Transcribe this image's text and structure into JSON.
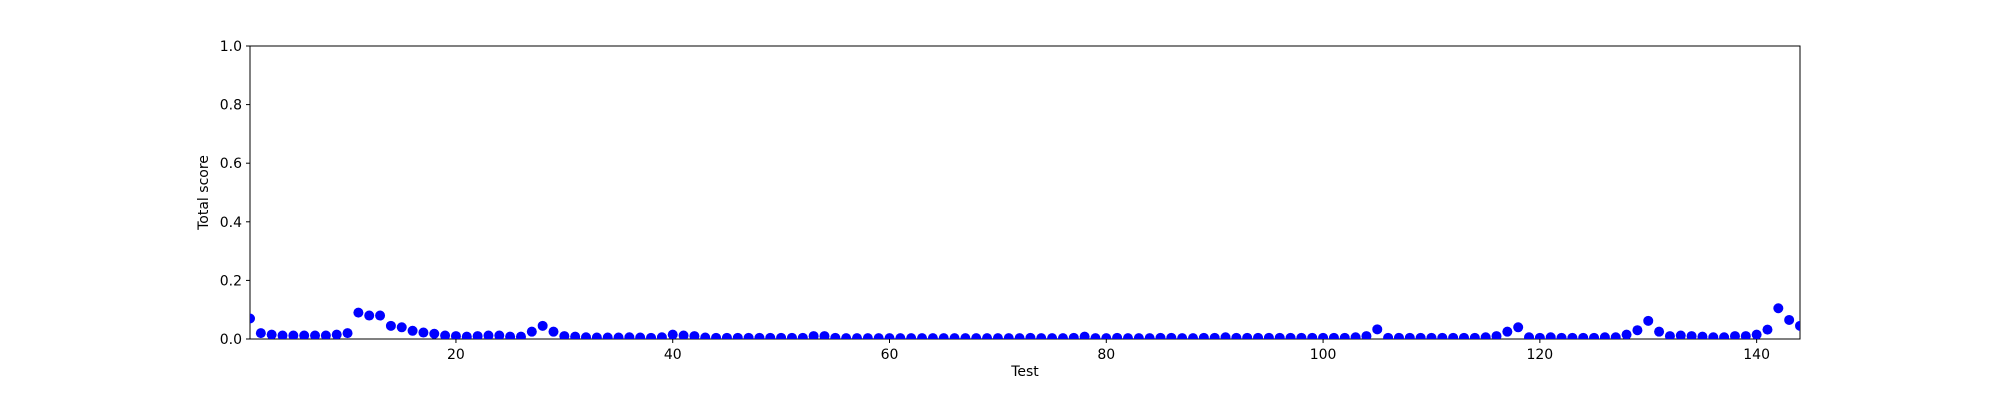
{
  "chart_data": {
    "type": "scatter",
    "xlabel": "Test",
    "ylabel": "Total score",
    "color": "#0000ff",
    "x": [
      1,
      2,
      3,
      4,
      5,
      6,
      7,
      8,
      9,
      10,
      11,
      12,
      13,
      14,
      15,
      16,
      17,
      18,
      19,
      20,
      21,
      22,
      23,
      24,
      25,
      26,
      27,
      28,
      29,
      30,
      31,
      32,
      33,
      34,
      35,
      36,
      37,
      38,
      39,
      40,
      41,
      42,
      43,
      44,
      45,
      46,
      47,
      48,
      49,
      50,
      51,
      52,
      53,
      54,
      55,
      56,
      57,
      58,
      59,
      60,
      61,
      62,
      63,
      64,
      65,
      66,
      67,
      68,
      69,
      70,
      71,
      72,
      73,
      74,
      75,
      76,
      77,
      78,
      79,
      80,
      81,
      82,
      83,
      84,
      85,
      86,
      87,
      88,
      89,
      90,
      91,
      92,
      93,
      94,
      95,
      96,
      97,
      98,
      99,
      100,
      101,
      102,
      103,
      104,
      105,
      106,
      107,
      108,
      109,
      110,
      111,
      112,
      113,
      114,
      115,
      116,
      117,
      118,
      119,
      120,
      121,
      122,
      123,
      124,
      125,
      126,
      127,
      128,
      129,
      130,
      131,
      132,
      133,
      134,
      135,
      136,
      137,
      138,
      139,
      140,
      141,
      142,
      143,
      144
    ],
    "values": [
      0.07,
      0.02,
      0.015,
      0.012,
      0.012,
      0.012,
      0.012,
      0.012,
      0.015,
      0.02,
      0.09,
      0.08,
      0.08,
      0.045,
      0.04,
      0.028,
      0.022,
      0.018,
      0.012,
      0.01,
      0.008,
      0.01,
      0.012,
      0.012,
      0.008,
      0.008,
      0.025,
      0.045,
      0.025,
      0.01,
      0.008,
      0.006,
      0.005,
      0.005,
      0.005,
      0.006,
      0.005,
      0.004,
      0.006,
      0.015,
      0.012,
      0.01,
      0.005,
      0.004,
      0.004,
      0.004,
      0.004,
      0.004,
      0.004,
      0.004,
      0.004,
      0.004,
      0.01,
      0.01,
      0.004,
      0.003,
      0.003,
      0.003,
      0.003,
      0.003,
      0.003,
      0.003,
      0.003,
      0.003,
      0.003,
      0.003,
      0.003,
      0.003,
      0.003,
      0.003,
      0.003,
      0.003,
      0.004,
      0.003,
      0.003,
      0.003,
      0.004,
      0.008,
      0.003,
      0.003,
      0.004,
      0.003,
      0.003,
      0.003,
      0.004,
      0.004,
      0.003,
      0.003,
      0.004,
      0.004,
      0.006,
      0.004,
      0.004,
      0.004,
      0.004,
      0.004,
      0.004,
      0.004,
      0.004,
      0.004,
      0.004,
      0.004,
      0.006,
      0.01,
      0.033,
      0.004,
      0.004,
      0.004,
      0.004,
      0.004,
      0.004,
      0.004,
      0.004,
      0.004,
      0.006,
      0.01,
      0.025,
      0.04,
      0.006,
      0.004,
      0.006,
      0.004,
      0.004,
      0.004,
      0.004,
      0.006,
      0.006,
      0.015,
      0.03,
      0.062,
      0.025,
      0.01,
      0.012,
      0.01,
      0.008,
      0.006,
      0.006,
      0.01,
      0.01,
      0.015,
      0.032,
      0.105,
      0.065,
      0.045
    ],
    "xlim": [
      1,
      144
    ],
    "xticks": [
      20,
      40,
      60,
      80,
      100,
      120,
      140
    ],
    "ylim": [
      0,
      1
    ],
    "yticks": [
      {
        "value": 0,
        "label": "0.0"
      },
      0.2,
      0.4,
      0.6,
      0.8,
      {
        "value": 1,
        "label": "1.0"
      }
    ],
    "grid": false
  }
}
